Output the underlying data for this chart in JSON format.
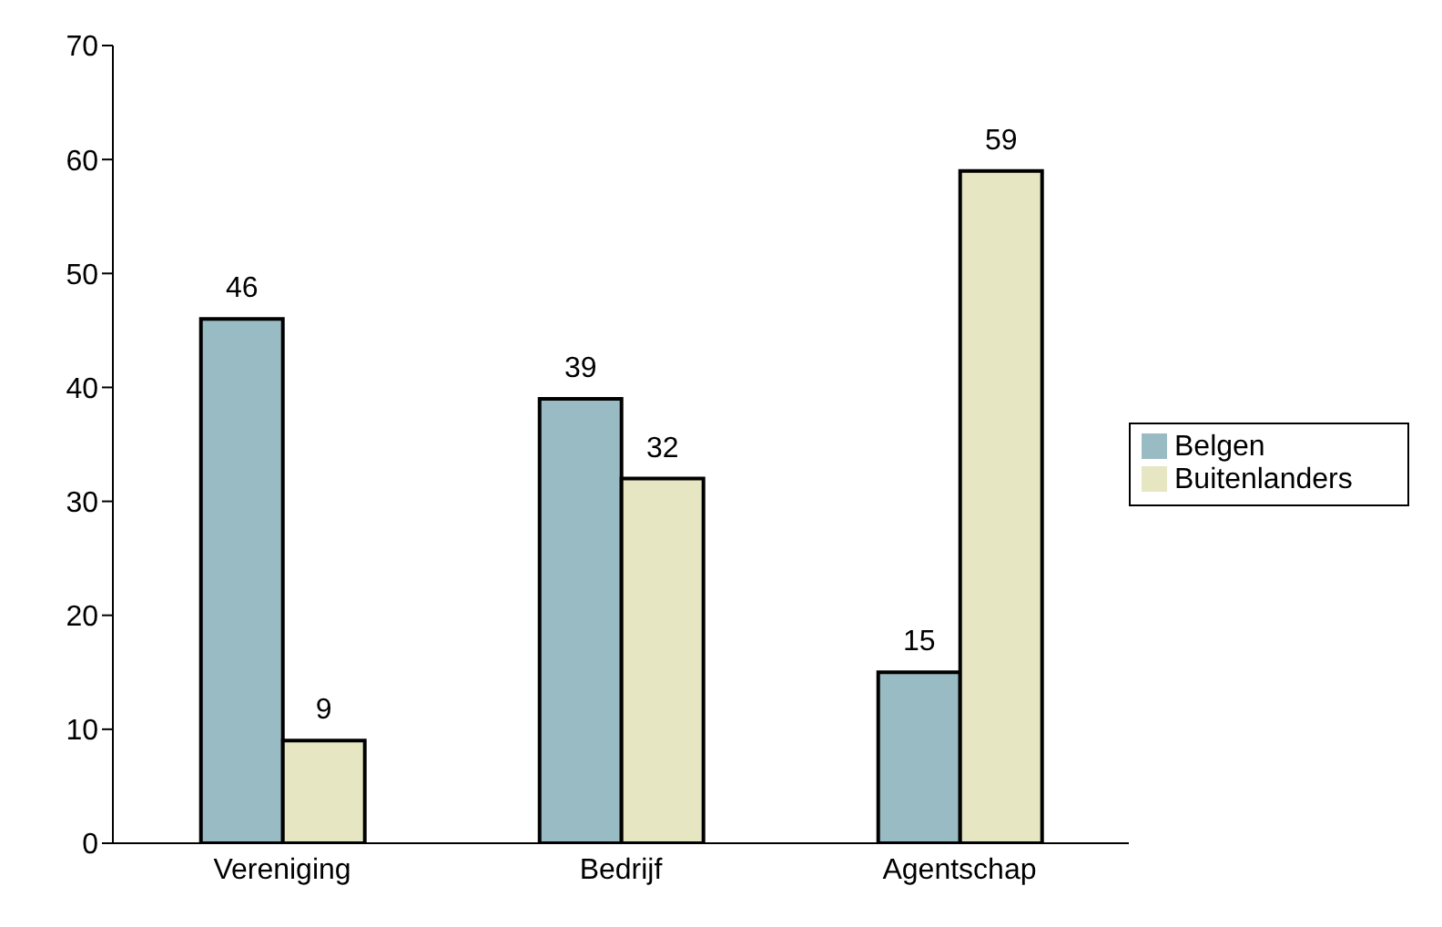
{
  "chart_data": {
    "type": "bar",
    "categories": [
      "Vereniging",
      "Bedrijf",
      "Agentschap"
    ],
    "series": [
      {
        "name": "Belgen",
        "color": "#99bbc3",
        "values": [
          46,
          39,
          15
        ]
      },
      {
        "name": "Buitenlanders",
        "color": "#e6e6c3",
        "values": [
          9,
          32,
          59
        ]
      }
    ],
    "ylim": [
      0,
      70
    ],
    "yticks": [
      0,
      10,
      20,
      30,
      40,
      50,
      60,
      70
    ],
    "data_labels": true,
    "legend": "right",
    "grid": false
  }
}
